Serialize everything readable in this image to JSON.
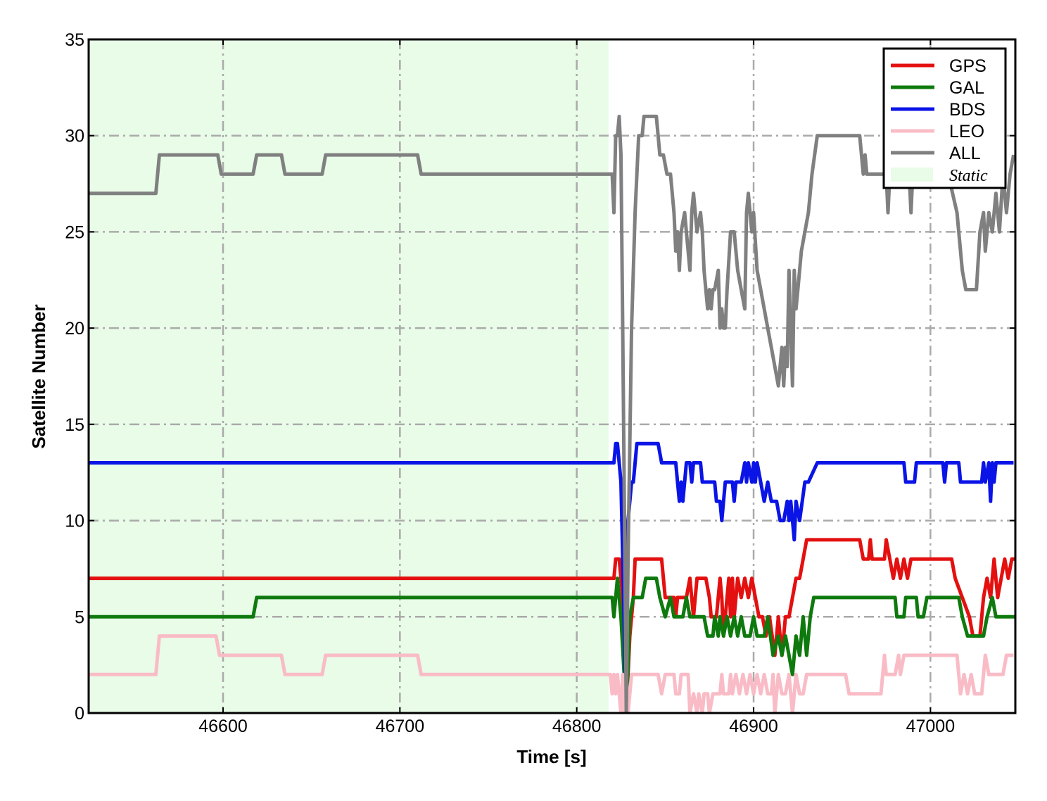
{
  "chart_data": {
    "type": "line",
    "xlabel": "Time [s]",
    "ylabel": "Satellite Number",
    "xlim": [
      46524,
      47048
    ],
    "ylim": [
      0,
      35
    ],
    "xticks": [
      46600,
      46700,
      46800,
      46900,
      47000
    ],
    "yticks": [
      0,
      5,
      10,
      15,
      20,
      25,
      30,
      35
    ],
    "grid": true,
    "legend": "upper right",
    "shaded_regions": [
      {
        "name": "Static",
        "color": "#e8fce8",
        "x": [
          46524,
          46818
        ]
      }
    ],
    "series": [
      {
        "name": "GPS",
        "color": "#e41010",
        "x": [
          46524,
          46819,
          46821,
          46822,
          46824,
          46826,
          46828,
          46830,
          46832,
          46833,
          46848,
          46850,
          46855,
          46856,
          46857,
          46862,
          46864,
          46866,
          46867,
          46868,
          46873,
          46875,
          46876,
          46879,
          46881,
          46882,
          46883,
          46885,
          46886,
          46887,
          46888,
          46889,
          46891,
          46893,
          46895,
          46897,
          46899,
          46901,
          46903,
          46905,
          46907,
          46909,
          46912,
          46914,
          46916,
          46918,
          46920,
          46922,
          46924,
          46926,
          46928,
          46930,
          46960,
          46962,
          46965,
          46966,
          46967,
          46974,
          46975,
          46977,
          46979,
          46981,
          46983,
          46985,
          46987,
          46989,
          46992,
          47012,
          47014,
          47018,
          47022,
          47024,
          47028,
          47030,
          47032,
          47034,
          47036,
          47038,
          47040,
          47042,
          47044,
          47046,
          47048
        ],
        "values": [
          7,
          7,
          7,
          8,
          8,
          6,
          0,
          4,
          6,
          8,
          8,
          6,
          6,
          5,
          6,
          6,
          7,
          5,
          6,
          7,
          7,
          6,
          5,
          5,
          7,
          6,
          4,
          6,
          7,
          5,
          7,
          5,
          7,
          6,
          7,
          6,
          7,
          6,
          5,
          5,
          4,
          5,
          3,
          5,
          3,
          5,
          5,
          6,
          7,
          7,
          8,
          9,
          9,
          8,
          8,
          9,
          8,
          8,
          9,
          8,
          7,
          8,
          7,
          8,
          7,
          8,
          8,
          8,
          7,
          6,
          5,
          4,
          4,
          6,
          7,
          6,
          8,
          6,
          7,
          8,
          7,
          8,
          8
        ]
      },
      {
        "name": "GAL",
        "color": "#0e7a0e",
        "x": [
          46524,
          46617,
          46619,
          46819,
          46820,
          46821,
          46823,
          46825,
          46828,
          46830,
          46832,
          46837,
          46839,
          46845,
          46847,
          46850,
          46853,
          46855,
          46860,
          46862,
          46864,
          46872,
          46874,
          46877,
          46878,
          46880,
          46881,
          46883,
          46885,
          46887,
          46889,
          46891,
          46893,
          46895,
          46898,
          46900,
          46902,
          46906,
          46908,
          46911,
          46914,
          46916,
          46918,
          46920,
          46922,
          46924,
          46926,
          46928,
          46930,
          46932,
          46934,
          46980,
          46981,
          46985,
          46986,
          46992,
          46993,
          46996,
          46998,
          47016,
          47018,
          47021,
          47030,
          47032,
          47035,
          47037,
          47048
        ],
        "values": [
          5,
          5,
          6,
          6,
          6,
          5,
          7,
          5,
          0,
          5,
          6,
          6,
          7,
          7,
          6,
          5,
          6,
          5,
          5,
          6,
          5,
          5,
          4,
          4,
          5,
          4,
          5,
          4,
          5,
          4,
          5,
          4,
          5,
          4,
          4,
          5,
          4,
          4,
          5,
          3,
          4,
          3,
          4,
          3,
          2,
          4,
          3,
          5,
          3,
          5,
          6,
          6,
          5,
          5,
          6,
          6,
          5,
          5,
          6,
          6,
          5,
          4,
          4,
          5,
          6,
          5,
          5
        ]
      },
      {
        "name": "BDS",
        "color": "#0a14e6",
        "x": [
          46524,
          46819,
          46821,
          46822,
          46823,
          46825,
          46828,
          46829,
          46831,
          46832,
          46834,
          46846,
          46848,
          46856,
          46857,
          46858,
          46859,
          46860,
          46861,
          46862,
          46864,
          46865,
          46866,
          46870,
          46871,
          46878,
          46879,
          46881,
          46882,
          46883,
          46884,
          46888,
          46889,
          46890,
          46893,
          46895,
          46896,
          46897,
          46899,
          46900,
          46901,
          46902,
          46904,
          46906,
          46908,
          46910,
          46913,
          46915,
          46917,
          46919,
          46920,
          46921,
          46923,
          46924,
          46926,
          46929,
          46931,
          46936,
          46985,
          46986,
          46991,
          46992,
          47007,
          47008,
          47009,
          47016,
          47017,
          47029,
          47030,
          47031,
          47033,
          47034,
          47035,
          47036,
          47037,
          47047
        ],
        "values": [
          13,
          13,
          13,
          14,
          14,
          12,
          0,
          10,
          12,
          12,
          14,
          14,
          13,
          13,
          12,
          11,
          12,
          11,
          12,
          13,
          13,
          12,
          13,
          13,
          12,
          12,
          11,
          11,
          10,
          11,
          12,
          12,
          11,
          12,
          12,
          13,
          12,
          13,
          12,
          13,
          12,
          13,
          12,
          11,
          12,
          11,
          11,
          10,
          10,
          11,
          10,
          11,
          9,
          11,
          10,
          12,
          12,
          13,
          13,
          12,
          12,
          13,
          13,
          12,
          13,
          13,
          12,
          12,
          13,
          12,
          13,
          11,
          13,
          12,
          13,
          13
        ]
      },
      {
        "name": "LEO",
        "color": "#f9bcc6",
        "x": [
          46524,
          46562,
          46564,
          46596,
          46598,
          46633,
          46635,
          46656,
          46658,
          46710,
          46712,
          46819,
          46820,
          46821,
          46822,
          46823,
          46825,
          46826,
          46827,
          46828,
          46829,
          46831,
          46846,
          46848,
          46850,
          46855,
          46856,
          46858,
          46859,
          46863,
          46864,
          46866,
          46868,
          46869,
          46871,
          46872,
          46874,
          46875,
          46877,
          46881,
          46882,
          46883,
          46886,
          46887,
          46888,
          46890,
          46892,
          46894,
          46896,
          46898,
          46900,
          46902,
          46904,
          46906,
          46908,
          46910,
          46911,
          46912,
          46914,
          46916,
          46918,
          46920,
          46922,
          46924,
          46926,
          46928,
          46930,
          46952,
          46954,
          46972,
          46974,
          46975,
          46980,
          46982,
          46983,
          46985,
          47000,
          47003,
          47015,
          47017,
          47019,
          47021,
          47023,
          47025,
          47029,
          47031,
          47033,
          47041,
          47043,
          47047
        ],
        "values": [
          2,
          2,
          4,
          4,
          3,
          3,
          2,
          2,
          3,
          3,
          2,
          2,
          1,
          2,
          1,
          2,
          0,
          2,
          0,
          2,
          0,
          2,
          2,
          1,
          2,
          2,
          1,
          1,
          2,
          2,
          0,
          1,
          0,
          1,
          0,
          1,
          1,
          0,
          1,
          1,
          2,
          1,
          1,
          2,
          1,
          2,
          1,
          2,
          1,
          2,
          1,
          2,
          1,
          2,
          1,
          1,
          2,
          0,
          2,
          1,
          1,
          2,
          0,
          2,
          1,
          1,
          2,
          2,
          1,
          1,
          3,
          2,
          2,
          3,
          2,
          3,
          3,
          3,
          3,
          1,
          2,
          1,
          2,
          1,
          1,
          3,
          2,
          2,
          3,
          3
        ]
      },
      {
        "name": "ALL",
        "color": "#808080",
        "x": [
          46524,
          46562,
          46564,
          46597,
          46599,
          46617,
          46619,
          46633,
          46635,
          46656,
          46658,
          46710,
          46712,
          46819,
          46820,
          46821,
          46822,
          46823,
          46824,
          46825,
          46826,
          46828,
          46829,
          46831,
          46833,
          46835,
          46837,
          46838,
          46845,
          46847,
          46849,
          46851,
          46853,
          46855,
          46856,
          46857,
          46858,
          46859,
          46861,
          46863,
          46864,
          46865,
          46866,
          46868,
          46870,
          46871,
          46872,
          46874,
          46875,
          46876,
          46877,
          46878,
          46880,
          46881,
          46882,
          46883,
          46884,
          46885,
          46887,
          46889,
          46891,
          46893,
          46895,
          46896,
          46897,
          46898,
          46899,
          46900,
          46902,
          46904,
          46906,
          46908,
          46910,
          46912,
          46914,
          46916,
          46917,
          46918,
          46919,
          46920,
          46922,
          46923,
          46924,
          46925,
          46927,
          46929,
          46931,
          46933,
          46936,
          46938,
          46960,
          46962,
          46963,
          46964,
          46975,
          46976,
          46977,
          46988,
          46989,
          46990,
          47010,
          47015,
          47018,
          47020,
          47026,
          47028,
          47030,
          47031,
          47033,
          47035,
          47037,
          47039,
          47041,
          47043,
          47045,
          47047
        ],
        "values": [
          27,
          27,
          29,
          29,
          28,
          28,
          29,
          29,
          28,
          28,
          29,
          29,
          28,
          28,
          28,
          26,
          30,
          30,
          31,
          29,
          20,
          0,
          8,
          20,
          26,
          30,
          30,
          31,
          31,
          29,
          29,
          28,
          28,
          26,
          24,
          25,
          23,
          25,
          26,
          24,
          23,
          26,
          27,
          25,
          26,
          25,
          23,
          21,
          22,
          21,
          22,
          22,
          23,
          20,
          21,
          20,
          20,
          22,
          25,
          25,
          23,
          22,
          21,
          26,
          27,
          26,
          25,
          26,
          23,
          22,
          21,
          20,
          19,
          18,
          17,
          19,
          17,
          19,
          18,
          23,
          17,
          23,
          21,
          22,
          24,
          25,
          26,
          28,
          30,
          30,
          30,
          28,
          29,
          28,
          28,
          26,
          28,
          28,
          26,
          28,
          28,
          26,
          23,
          22,
          22,
          25,
          26,
          24,
          26,
          25,
          27,
          25,
          28,
          26,
          28,
          29
        ]
      }
    ]
  }
}
